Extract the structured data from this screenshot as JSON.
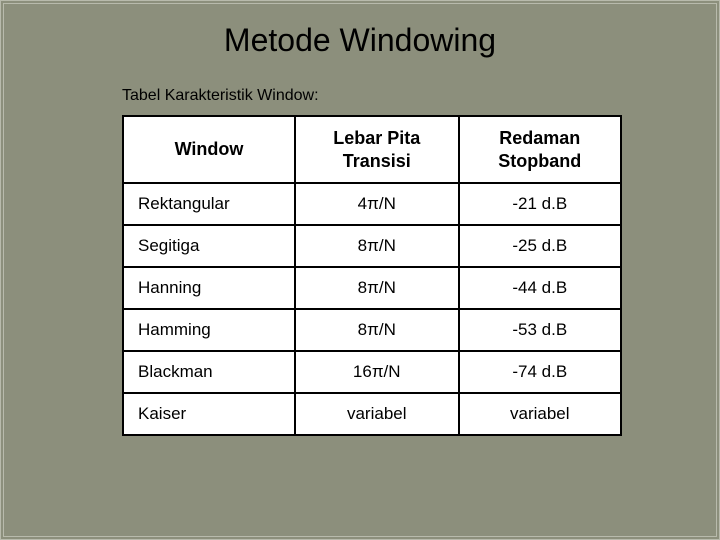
{
  "slide": {
    "title": "Metode Windowing",
    "caption": "Tabel Karakteristik Window:",
    "background_color": "#8c8f7c",
    "border_color": "#b8baac",
    "title_color": "#000000",
    "title_fontsize": 32,
    "caption_fontsize": 16
  },
  "table": {
    "type": "table",
    "background_color": "#ffffff",
    "border_color": "#000000",
    "header_fontsize": 18,
    "cell_fontsize": 17,
    "text_color": "#000000",
    "columns": [
      {
        "label": "Window",
        "align": "left",
        "width": 170
      },
      {
        "label": "Lebar Pita Transisi",
        "align": "center",
        "width": 170
      },
      {
        "label": "Redaman Stopband",
        "align": "center",
        "width": 160
      }
    ],
    "rows": [
      {
        "c0": "Rektangular",
        "c1": "4π/N",
        "c2": "-21 d.B"
      },
      {
        "c0": "Segitiga",
        "c1": "8π/N",
        "c2": "-25 d.B"
      },
      {
        "c0": "Hanning",
        "c1": "8π/N",
        "c2": "-44 d.B"
      },
      {
        "c0": "Hamming",
        "c1": "8π/N",
        "c2": "-53 d.B"
      },
      {
        "c0": "Blackman",
        "c1": "16π/N",
        "c2": "-74 d.B"
      },
      {
        "c0": "Kaiser",
        "c1": "variabel",
        "c2": "variabel"
      }
    ]
  }
}
